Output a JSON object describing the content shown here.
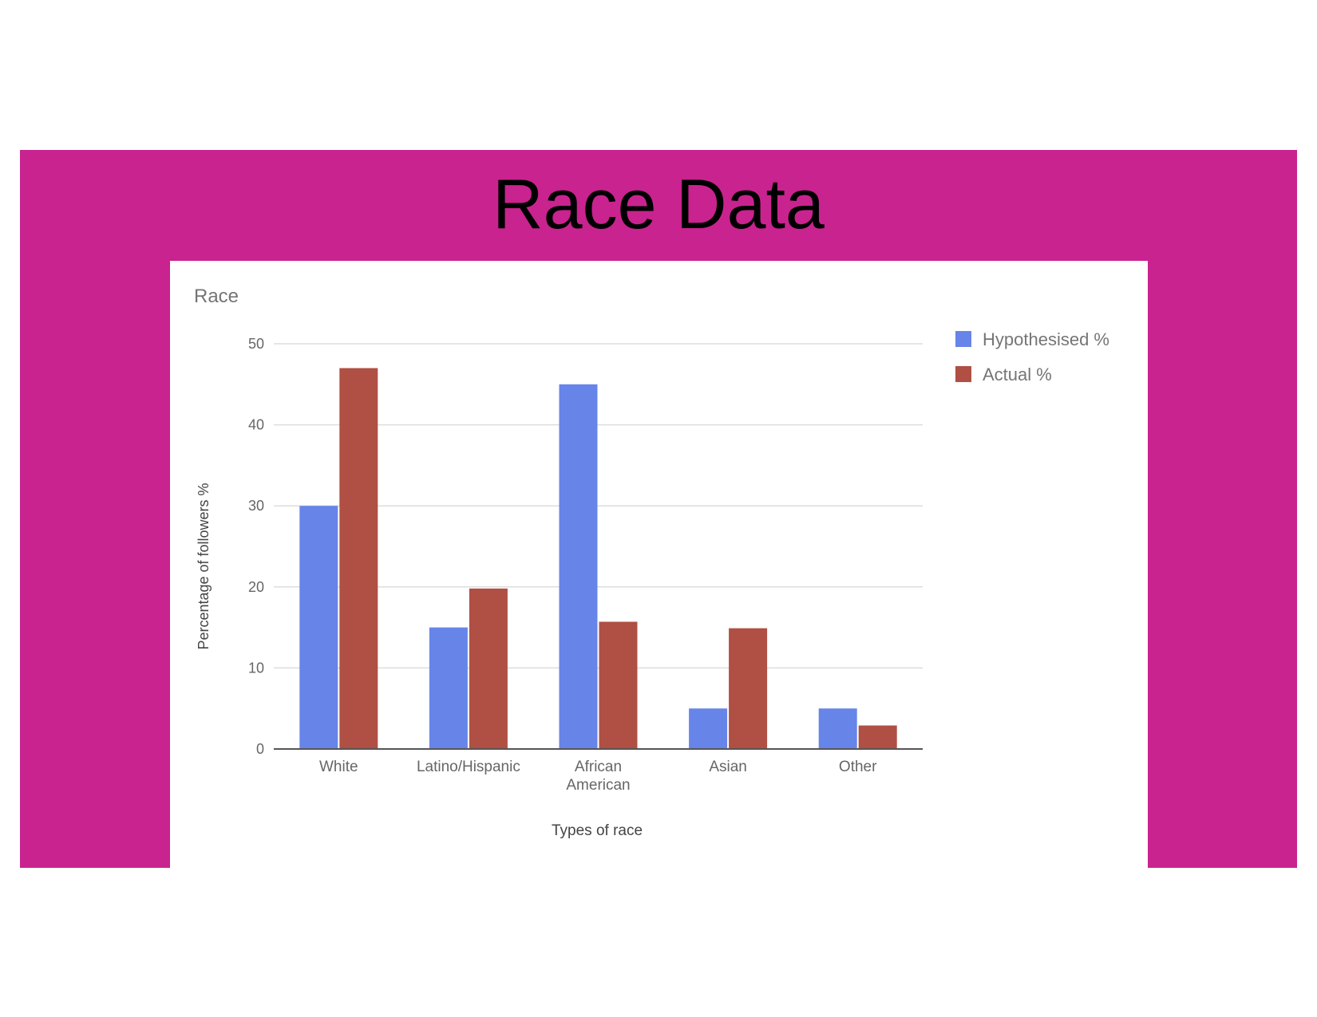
{
  "slide": {
    "title": "Race Data",
    "background_color": "#c9238f"
  },
  "chart_data": {
    "type": "bar",
    "title": "Race",
    "xlabel": "Types of race",
    "ylabel": "Percentage of followers %",
    "ylim": [
      0,
      50
    ],
    "yticks": [
      0,
      10,
      20,
      30,
      40,
      50
    ],
    "grid": true,
    "legend_position": "right",
    "categories": [
      "White",
      "Latino/Hispanic",
      "African American",
      "Asian",
      "Other"
    ],
    "category_label_lines": [
      [
        "White"
      ],
      [
        "Latino/Hispanic"
      ],
      [
        "African",
        "American"
      ],
      [
        "Asian"
      ],
      [
        "Other"
      ]
    ],
    "series": [
      {
        "name": "Hypothesised %",
        "color": "#6784e9",
        "values": [
          30,
          15,
          45,
          5,
          5
        ]
      },
      {
        "name": "Actual %",
        "color": "#b04f43",
        "values": [
          47,
          19.8,
          15.7,
          14.9,
          2.9
        ]
      }
    ]
  }
}
